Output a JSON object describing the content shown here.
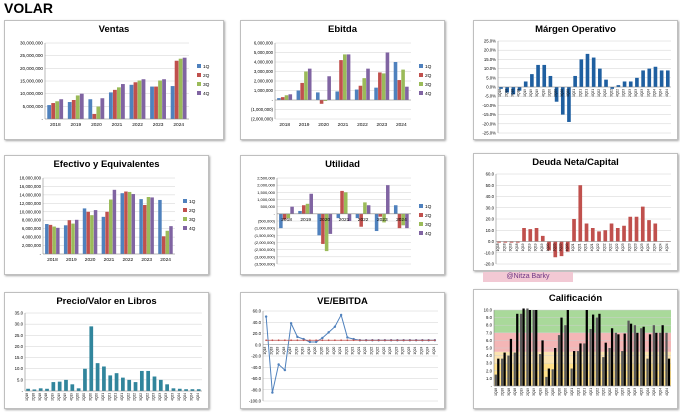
{
  "page": {
    "title": "VOLAR",
    "credit": "@Nitza Barky"
  },
  "chart_data": [
    {
      "id": "ventas",
      "type": "bar",
      "title": "Ventas",
      "categories": [
        "2018",
        "2019",
        "2020",
        "2021",
        "2022",
        "2023",
        "2024"
      ],
      "series": [
        {
          "name": "1Q",
          "color": "#4f81bd",
          "values": [
            5500000,
            6700000,
            7800000,
            10500000,
            13500000,
            12800000,
            13000000
          ]
        },
        {
          "name": "2Q",
          "color": "#c0504d",
          "values": [
            6300000,
            7500000,
            2000000,
            11500000,
            14500000,
            12800000,
            23000000
          ]
        },
        {
          "name": "3Q",
          "color": "#9bbb59",
          "values": [
            7000000,
            9300000,
            4900000,
            12500000,
            15200000,
            15200000,
            23800000
          ]
        },
        {
          "name": "4Q",
          "color": "#8064a2",
          "values": [
            7800000,
            10000000,
            8200000,
            13800000,
            15700000,
            15700000,
            24200000
          ]
        }
      ],
      "ylim": [
        0,
        30000000
      ],
      "yticks": [
        0,
        5000000,
        10000000,
        15000000,
        20000000,
        25000000,
        30000000
      ],
      "ytick_labels": [
        "-",
        "5,000,000",
        "10,000,000",
        "15,000,000",
        "20,000,000",
        "25,000,000",
        "30,000,000"
      ]
    },
    {
      "id": "ebitda",
      "type": "bar",
      "title": "Ebitda",
      "categories": [
        "2018",
        "2019",
        "2020",
        "2021",
        "2022",
        "2023",
        "2024"
      ],
      "series": [
        {
          "name": "1Q",
          "color": "#4f81bd",
          "values": [
            200000,
            1000000,
            800000,
            900000,
            1100000,
            1300000,
            4000000
          ]
        },
        {
          "name": "2Q",
          "color": "#c0504d",
          "values": [
            300000,
            1800000,
            -400000,
            4200000,
            1500000,
            2900000,
            2100000
          ]
        },
        {
          "name": "3Q",
          "color": "#9bbb59",
          "values": [
            500000,
            3000000,
            -100000,
            4800000,
            2300000,
            2800000,
            3200000
          ]
        },
        {
          "name": "4Q",
          "color": "#8064a2",
          "values": [
            600000,
            3300000,
            2500000,
            4800000,
            3300000,
            5000000,
            1400000
          ]
        }
      ],
      "ylim": [
        -2000000,
        6000000
      ],
      "yticks": [
        -2000000,
        -1000000,
        0,
        1000000,
        2000000,
        3000000,
        4000000,
        5000000,
        6000000
      ],
      "ytick_labels": [
        "(2,000,000)",
        "(1,000,000)",
        "-",
        "1,000,000",
        "2,000,000",
        "3,000,000",
        "4,000,000",
        "5,000,000",
        "6,000,000"
      ]
    },
    {
      "id": "margen",
      "type": "bar",
      "title": "Márgen Operativo",
      "categories": [
        "1Q18",
        "2Q18",
        "3Q18",
        "4Q18",
        "1Q19",
        "2Q19",
        "3Q19",
        "4Q19",
        "1Q20",
        "2Q20",
        "3Q20",
        "4Q20",
        "1Q21",
        "2Q21",
        "3Q21",
        "4Q21",
        "1Q22",
        "2Q22",
        "3Q22",
        "4Q22",
        "1Q23",
        "2Q23",
        "3Q23",
        "4Q23",
        "1Q24",
        "2Q24",
        "3Q24",
        "4Q24"
      ],
      "values": [
        -1,
        -3,
        -4,
        -2,
        3,
        7,
        12,
        12,
        6,
        -8,
        -15,
        -19,
        6,
        15,
        18,
        16,
        10,
        4,
        -1,
        1,
        3,
        3,
        5,
        9,
        10,
        11,
        9,
        9
      ],
      "color": "#1f5fa0",
      "ylim": [
        -25,
        25
      ],
      "yticks": [
        -25,
        -20,
        -15,
        -10,
        -5,
        0,
        5,
        10,
        15,
        20,
        25
      ],
      "ytick_labels": [
        "-25.0%",
        "-20.0%",
        "-15.0%",
        "-10.0%",
        "-5.0%",
        "0.0%",
        "5.0%",
        "10.0%",
        "15.0%",
        "20.0%",
        "25.0%"
      ]
    },
    {
      "id": "efectivo",
      "type": "bar",
      "title": "Efectivo y Equivalentes",
      "categories": [
        "2018",
        "2019",
        "2020",
        "2021",
        "2022",
        "2023",
        "2024"
      ],
      "series": [
        {
          "name": "1Q",
          "color": "#4f81bd",
          "values": [
            7100000,
            6800000,
            10800000,
            8800000,
            14400000,
            13000000,
            12800000
          ]
        },
        {
          "name": "2Q",
          "color": "#c0504d",
          "values": [
            6900000,
            8000000,
            10000000,
            10000000,
            14800000,
            11600000,
            4200000
          ]
        },
        {
          "name": "3Q",
          "color": "#9bbb59",
          "values": [
            6500000,
            7200000,
            9200000,
            12900000,
            14700000,
            13500000,
            5500000
          ]
        },
        {
          "name": "4Q",
          "color": "#8064a2",
          "values": [
            6200000,
            8100000,
            10400000,
            15200000,
            14200000,
            13400000,
            6600000
          ]
        }
      ],
      "ylim": [
        0,
        18000000
      ],
      "yticks": [
        0,
        2000000,
        4000000,
        6000000,
        8000000,
        10000000,
        12000000,
        14000000,
        16000000,
        18000000
      ],
      "ytick_labels": [
        "-",
        "2,000,000",
        "4,000,000",
        "6,000,000",
        "8,000,000",
        "10,000,000",
        "12,000,000",
        "14,000,000",
        "16,000,000",
        "18,000,000"
      ]
    },
    {
      "id": "utilidad",
      "type": "bar",
      "title": "Utilidad",
      "categories": [
        "2018",
        "2019",
        "2020",
        "2021",
        "2022",
        "2023",
        "2024"
      ],
      "series": [
        {
          "name": "1Q",
          "color": "#4f81bd",
          "values": [
            -1000000,
            200000,
            -1500000,
            -300000,
            -300000,
            -1200000,
            600000
          ]
        },
        {
          "name": "2Q",
          "color": "#c0504d",
          "values": [
            -400000,
            600000,
            -2100000,
            1600000,
            -900000,
            -200000,
            -1000000
          ]
        },
        {
          "name": "3Q",
          "color": "#9bbb59",
          "values": [
            -300000,
            700000,
            -2600000,
            1500000,
            800000,
            -600000,
            -800000
          ]
        },
        {
          "name": "4Q",
          "color": "#8064a2",
          "values": [
            500000,
            1400000,
            -1400000,
            -500000,
            600000,
            2000000,
            -1000000
          ]
        }
      ],
      "ylim": [
        -3500000,
        2500000
      ],
      "yticks": [
        -3500000,
        -3000000,
        -2500000,
        -2000000,
        -1500000,
        -1000000,
        -500000,
        0,
        500000,
        1000000,
        1500000,
        2000000,
        2500000
      ],
      "ytick_labels": [
        "(3,500,000)",
        "(3,000,000)",
        "(2,500,000)",
        "(2,000,000)",
        "(1,500,000)",
        "(1,000,000)",
        "(500,000)",
        "-",
        "500,000",
        "1,000,000",
        "1,500,000",
        "2,000,000",
        "2,500,000"
      ]
    },
    {
      "id": "deuda",
      "type": "bar",
      "title": "Deuda Neta/Capital",
      "categories": [
        "1Q18",
        "2Q18",
        "3Q18",
        "4Q18",
        "1Q19",
        "2Q19",
        "3Q19",
        "4Q19",
        "1Q20",
        "2Q20",
        "3Q20",
        "4Q20",
        "1Q21",
        "2Q21",
        "3Q21",
        "4Q21",
        "1Q22",
        "2Q22",
        "3Q22",
        "4Q22",
        "1Q23",
        "2Q23",
        "3Q23",
        "4Q23",
        "1Q24",
        "2Q24",
        "3Q24",
        "4Q24"
      ],
      "values": [
        -1,
        -1,
        -1,
        -1,
        12,
        11,
        12,
        5,
        -8,
        -14,
        -13,
        -9,
        20,
        50,
        16,
        12,
        9,
        10,
        16,
        12,
        14,
        22,
        22,
        31,
        19,
        16,
        0,
        0
      ],
      "color": "#c0504d",
      "ylim": [
        -20,
        60
      ],
      "yticks": [
        -20,
        -10,
        0,
        10,
        20,
        30,
        40,
        50,
        60
      ],
      "ytick_labels": [
        "-20.0",
        "-10.0",
        "0.0",
        "10.0",
        "20.0",
        "30.0",
        "40.0",
        "50.0",
        "60.0"
      ]
    },
    {
      "id": "pvl",
      "type": "bar",
      "title": "Precio/Valor en Libros",
      "categories": [
        "1Q18",
        "2Q18",
        "3Q18",
        "4Q18",
        "1Q19",
        "2Q19",
        "3Q19",
        "4Q19",
        "1Q20",
        "2Q20",
        "3Q20",
        "4Q20",
        "1Q21",
        "2Q21",
        "3Q21",
        "4Q21",
        "1Q22",
        "2Q22",
        "3Q22",
        "4Q22",
        "1Q23",
        "2Q23",
        "3Q23",
        "4Q23",
        "1Q24",
        "2Q24",
        "3Q24",
        "4Q24"
      ],
      "values": [
        1,
        0.7,
        1.2,
        1,
        4,
        4.2,
        5,
        3,
        1.2,
        10,
        29,
        12.5,
        11,
        7,
        8,
        6,
        5,
        4,
        9,
        9,
        6.5,
        5,
        3,
        1.2,
        1,
        0.8,
        0.8,
        0.8
      ],
      "color": "#31859c",
      "ylim": [
        0,
        35
      ],
      "yticks": [
        0,
        5,
        10,
        15,
        20,
        25,
        30,
        35
      ],
      "ytick_labels": [
        "-",
        "5.0",
        "10.0",
        "15.0",
        "20.0",
        "25.0",
        "30.0",
        "35.0"
      ]
    },
    {
      "id": "veebitda",
      "type": "line",
      "title": "VE/EBITDA",
      "categories": [
        "1Q18",
        "2Q18",
        "3Q18",
        "4Q18",
        "1Q19",
        "2Q19",
        "3Q19",
        "4Q19",
        "1Q20",
        "2Q20",
        "3Q20",
        "4Q20",
        "1Q21",
        "2Q21",
        "3Q21",
        "4Q21",
        "1Q22",
        "2Q22",
        "3Q22",
        "4Q22",
        "1Q23",
        "2Q23",
        "3Q23",
        "4Q23",
        "1Q24",
        "2Q24",
        "3Q24",
        "4Q24"
      ],
      "series": [
        {
          "name": "",
          "color": "#4f81bd",
          "values": [
            50,
            -85,
            -35,
            -45,
            38,
            14,
            10,
            5,
            5,
            12,
            22,
            32,
            53,
            13,
            10,
            8,
            8,
            8,
            8,
            8,
            8,
            8,
            8,
            8,
            8,
            8,
            8,
            8
          ]
        },
        {
          "name": "",
          "color": "#c0504d",
          "values": [
            8,
            8,
            8,
            8,
            8,
            8,
            8,
            8,
            8,
            8,
            8,
            8,
            8,
            8,
            8,
            8,
            8,
            8,
            8,
            8,
            8,
            8,
            8,
            8,
            8,
            8,
            8,
            8
          ]
        }
      ],
      "ylim": [
        -100,
        60
      ],
      "yticks": [
        -100,
        -80,
        -60,
        -40,
        -20,
        0,
        20,
        40,
        60
      ],
      "ytick_labels": [
        "-100.0",
        "-80.0",
        "-60.0",
        "-40.0",
        "-20.0",
        "0.0",
        "20.0",
        "40.0",
        "60.0"
      ]
    },
    {
      "id": "calificacion",
      "type": "bar",
      "title": "Calificación",
      "categories": [
        "1Q18",
        "2Q18",
        "3Q18",
        "4Q18",
        "1Q19",
        "2Q19",
        "3Q19",
        "4Q19",
        "1Q20",
        "2Q20",
        "3Q20",
        "4Q20",
        "1Q21",
        "2Q21",
        "3Q21",
        "4Q21",
        "1Q22",
        "2Q22",
        "3Q22",
        "4Q22",
        "1Q23",
        "2Q23",
        "3Q23",
        "4Q23",
        "1Q24",
        "2Q24",
        "3Q24",
        "4Q24"
      ],
      "series": [
        {
          "name": "",
          "color": "#595959",
          "values": [
            1.5,
            3.6,
            4.0,
            4.4,
            9.5,
            10.2,
            10.0,
            4.2,
            1.2,
            2.2,
            6.7,
            8.0,
            2.3,
            4.6,
            5.6,
            7.5,
            9.0,
            3.8,
            5.0,
            7.0,
            4.6,
            8.6,
            8.0,
            7.6,
            3.6,
            8.0,
            7.0,
            7.0
          ]
        },
        {
          "name": "",
          "color": "#000000",
          "values": [
            3.6,
            4.4,
            6.2,
            9.5,
            10.2,
            10.0,
            10.0,
            6.0,
            2.3,
            5.0,
            9.0,
            10.0,
            4.6,
            5.6,
            10.0,
            9.4,
            9.5,
            5.7,
            7.6,
            6.8,
            6.9,
            8.2,
            7.0,
            7.8,
            6.8,
            7.0,
            8.0,
            3.6
          ]
        }
      ],
      "ylim": [
        0,
        10
      ],
      "yticks": [
        0,
        1,
        2,
        3,
        4,
        5,
        6,
        7,
        8,
        9,
        10
      ],
      "ytick_labels": [
        "-",
        "1.0",
        "2.0",
        "3.0",
        "4.0",
        "5.0",
        "6.0",
        "7.0",
        "8.0",
        "9.0",
        "10.0"
      ],
      "bands": [
        {
          "from": 0,
          "to": 3,
          "color": "#ffe08a"
        },
        {
          "from": 3,
          "to": 4.5,
          "color": "#fbe3b0"
        },
        {
          "from": 4.5,
          "to": 7,
          "color": "#f4b6b6"
        },
        {
          "from": 7,
          "to": 10,
          "color": "#a9d99a"
        }
      ]
    }
  ]
}
